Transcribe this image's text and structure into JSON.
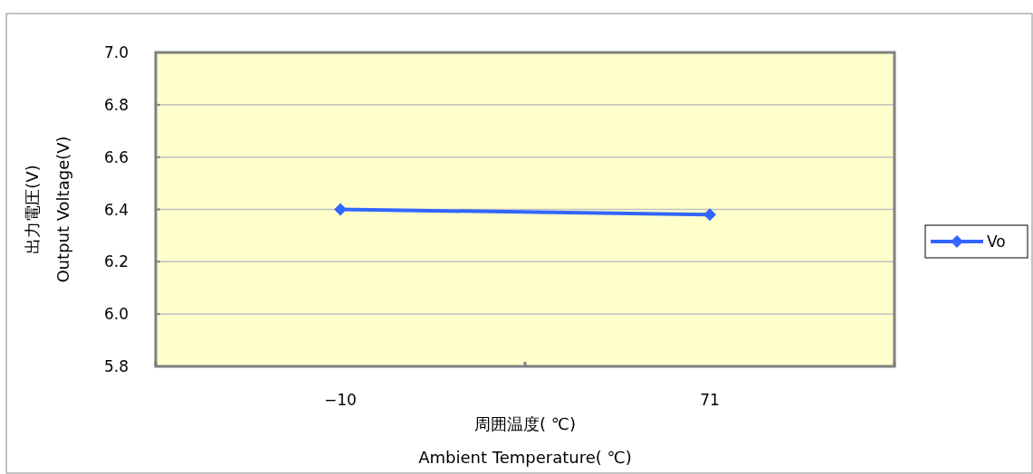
{
  "chart_data": {
    "type": "line",
    "xlabel": "周囲温度( ℃)\nAmbient Temperature( ℃)",
    "ylabel": "出力電圧(V)\nOutput Voltage(V)",
    "categories": [
      "−10",
      "71"
    ],
    "series": [
      {
        "name": "Vo",
        "color": "#3366ff",
        "values": [
          6.4,
          6.38
        ]
      }
    ],
    "ylim": [
      5.8,
      7.0
    ],
    "yticks": [
      {
        "value": 5.8,
        "label": "5.8"
      },
      {
        "value": 6.0,
        "label": "6.0"
      },
      {
        "value": 6.2,
        "label": "6.2"
      },
      {
        "value": 6.4,
        "label": "6.4"
      },
      {
        "value": 6.6,
        "label": "6.6"
      },
      {
        "value": 6.8,
        "label": "6.8"
      },
      {
        "value": 7.0,
        "label": "7.0"
      }
    ],
    "grid": "y",
    "legend": "right",
    "marker": "diamond",
    "line_style": "solid"
  }
}
